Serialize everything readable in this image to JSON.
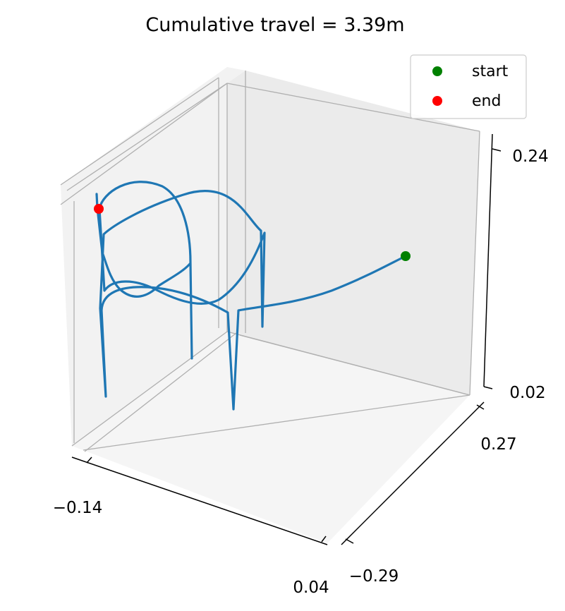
{
  "chart_data": {
    "type": "line",
    "projection": "3d",
    "title": "Cumulative travel = 3.39m",
    "axes": {
      "x": {
        "ticks": [
          "−0.14",
          "0.04"
        ]
      },
      "y": {
        "ticks": [
          "−0.29",
          "0.27"
        ]
      },
      "z": {
        "ticks": [
          "0.02",
          "0.24"
        ]
      }
    },
    "grid": true,
    "legend": {
      "placement": "top-right",
      "entries": [
        {
          "label": "start",
          "color": "#008000"
        },
        {
          "label": "end",
          "color": "#ff0000"
        }
      ]
    },
    "series": [
      {
        "color": "#1f77b4",
        "description_points": "trajectory"
      }
    ]
  }
}
